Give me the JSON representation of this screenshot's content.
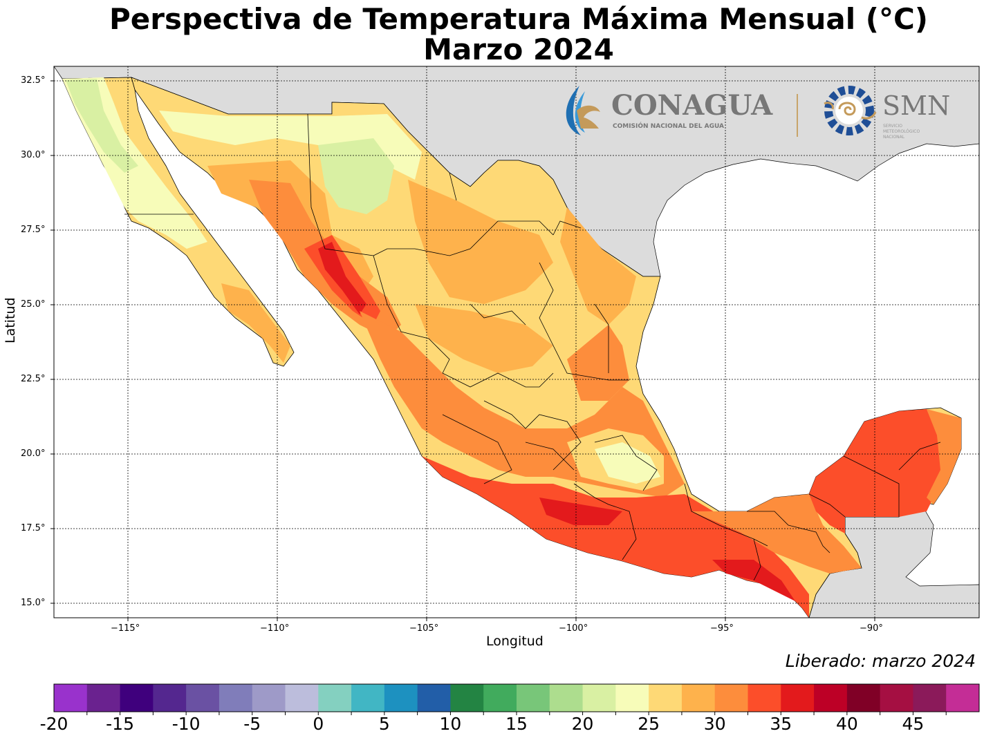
{
  "title_line1": "Perspectiva de Temperatura Máxima Mensual (°C)",
  "title_line2": "Marzo 2024",
  "xlabel": "Longitud",
  "ylabel": "Latitud",
  "released": "Liberado: marzo 2024",
  "x_ticks": [
    "−115°",
    "−110°",
    "−105°",
    "−100°",
    "−95°",
    "−90°"
  ],
  "y_ticks": [
    "32.5°",
    "30.0°",
    "27.5°",
    "25.0°",
    "22.5°",
    "20.0°",
    "17.5°",
    "15.0°"
  ],
  "logos": {
    "conagua_name": "CONAGUA",
    "conagua_sub": "COMISIÓN NACIONAL DEL AGUA",
    "smn_name": "SMN",
    "smn_sub_1": "SERVICIO",
    "smn_sub_2": "METEOROLÓGICO",
    "smn_sub_3": "NACIONAL"
  },
  "colorbar": {
    "labels": [
      "-20",
      "-15",
      "-10",
      "-5",
      "0",
      "5",
      "10",
      "15",
      "20",
      "25",
      "30",
      "35",
      "40",
      "45"
    ],
    "colors": [
      "#9932cc",
      "#6a228f",
      "#3f007d",
      "#54278f",
      "#6a51a3",
      "#807dba",
      "#9e9ac8",
      "#bcbddc",
      "#84d0c0",
      "#41b6c4",
      "#1d91c0",
      "#225ea8",
      "#238443",
      "#41ab5d",
      "#78c679",
      "#addd8e",
      "#d9f0a3",
      "#f7fcb9",
      "#fed976",
      "#feb24c",
      "#fd8d3c",
      "#fc4e2a",
      "#e31a1c",
      "#bd0026",
      "#800026",
      "#a50f42",
      "#8b1a5a",
      "#c42d96"
    ]
  },
  "map_colors": {
    "land_other": "#dcdcdc",
    "ocean": "#ffffff"
  }
}
